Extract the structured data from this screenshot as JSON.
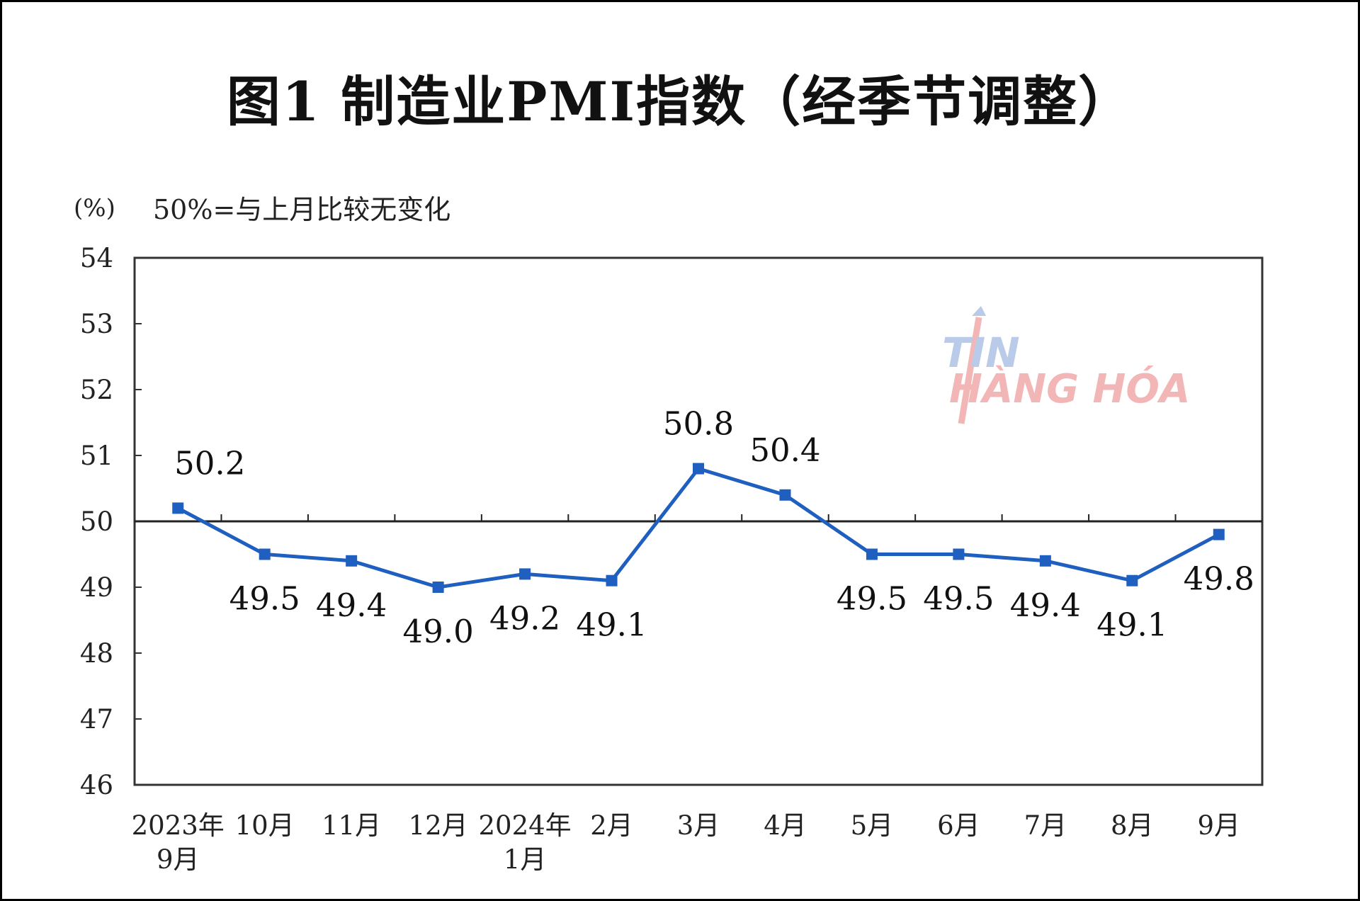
{
  "title": "图1  制造业PMI指数（经季节调整）",
  "watermark": {
    "line1": "TIN",
    "line2": "HÀNG HÓA"
  },
  "chart_data": {
    "type": "line",
    "title": "图1  制造业PMI指数（经季节调整）",
    "ylabel": "(%)",
    "annotation": "50%=与上月比较无变化",
    "ylim": [
      46,
      54
    ],
    "yticks": [
      "54",
      "53",
      "52",
      "51",
      "50",
      "49",
      "48",
      "47",
      "46"
    ],
    "reference_line": 50,
    "categories": [
      [
        "2023年",
        "9月"
      ],
      [
        "10月"
      ],
      [
        "11月"
      ],
      [
        "12月"
      ],
      [
        "2024年",
        "1月"
      ],
      [
        "2月"
      ],
      [
        "3月"
      ],
      [
        "4月"
      ],
      [
        "5月"
      ],
      [
        "6月"
      ],
      [
        "7月"
      ],
      [
        "8月"
      ],
      [
        "9月"
      ]
    ],
    "series": [
      {
        "name": "制造业PMI",
        "color": "#1f5fbf",
        "values": [
          50.2,
          49.5,
          49.4,
          49.0,
          49.2,
          49.1,
          50.8,
          50.4,
          49.5,
          49.5,
          49.4,
          49.1,
          49.8
        ],
        "labels": [
          "50.2",
          "49.5",
          "49.4",
          "49.0",
          "49.2",
          "49.1",
          "50.8",
          "50.4",
          "49.5",
          "49.5",
          "49.4",
          "49.1",
          "49.8"
        ]
      }
    ]
  }
}
